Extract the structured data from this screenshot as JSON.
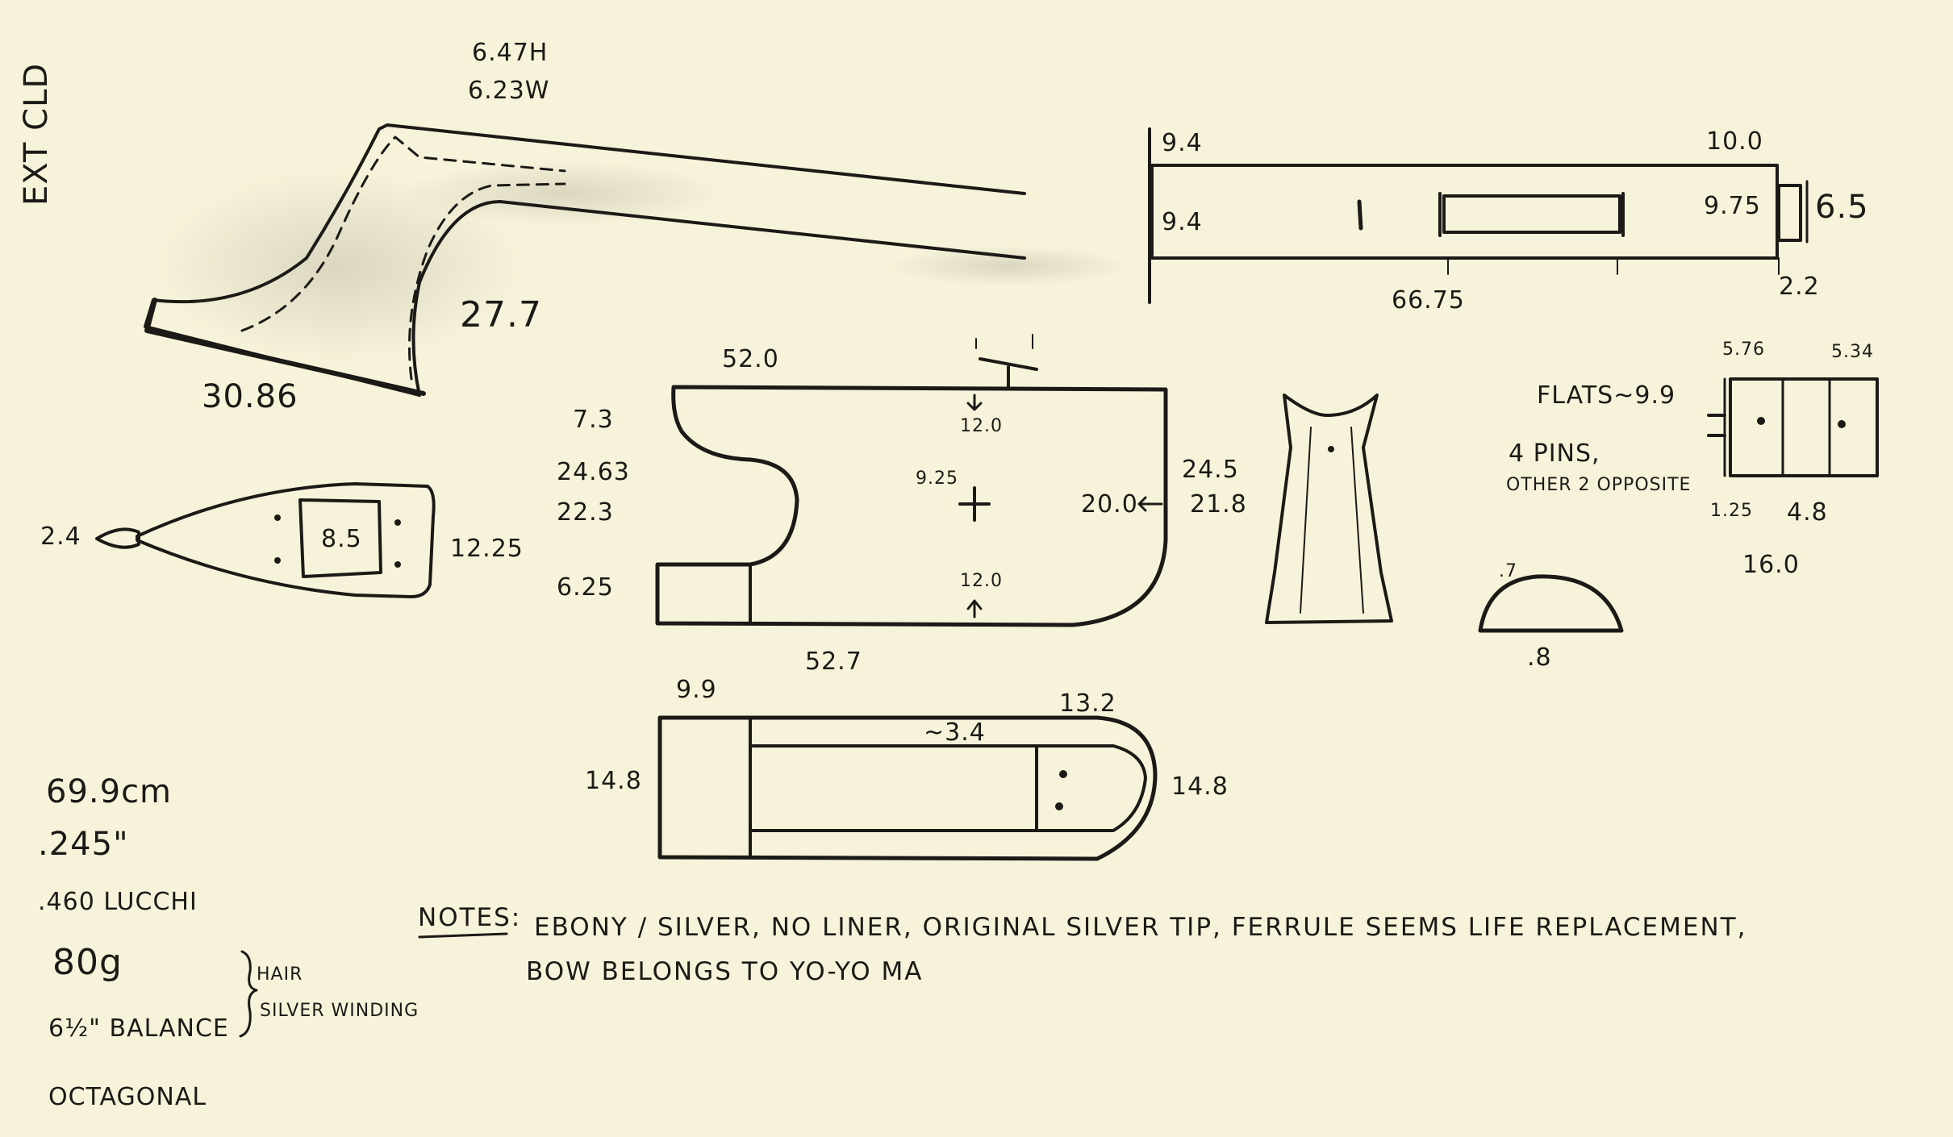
{
  "side_label": "EXT CLD",
  "frog_heights": {
    "h": "6.47H",
    "w": "6.23W"
  },
  "head": {
    "dim_a": "27.7",
    "dim_b": "30.86"
  },
  "ferrule": {
    "tl": "9.4",
    "tr": "10.0",
    "ml": "9.4",
    "mr": "9.75",
    "right": "6.5",
    "br": "2.2",
    "bottom": "66.75"
  },
  "frog": {
    "top": "52.0",
    "bottom": "52.7",
    "l1": "7.3",
    "l2": "24.63",
    "l3": "22.3",
    "l4": "6.25",
    "inner_top": "12.0",
    "inner_mid": "9.25",
    "inner_bot": "12.0",
    "r1": "24.5",
    "r2": "20.0",
    "r3": "21.8"
  },
  "tip": {
    "left": "2.4",
    "center": "8.5",
    "right": "12.25"
  },
  "underslide": {
    "tl": "9.9",
    "tr": "13.2",
    "inner": "~3.4",
    "left": "14.8",
    "right": "14.8"
  },
  "flats": {
    "label": "FLATS~9.9",
    "pins": "4 PINS,",
    "opp": "OTHER 2 OPPOSITE",
    "t1": "5.76",
    "t2": "5.34",
    "b1": "1.25",
    "b2": "4.8",
    "total": "16.0"
  },
  "arc": {
    "top": ".7",
    "bottom": ".8"
  },
  "specs": {
    "length": "69.9cm",
    "dia1": ".245\"",
    "dia2": ".460 LUCCHI",
    "weight": "80g",
    "balance": "6½\" BALANCE",
    "hair": "HAIR",
    "winding": "SILVER WINDING",
    "shape": "OCTAGONAL"
  },
  "notes": {
    "label": "NOTES:",
    "line1": "EBONY / SILVER, NO LINER, ORIGINAL SILVER TIP, FERRULE SEEMS LIFE REPLACEMENT,",
    "line2": "BOW BELONGS TO YO-YO MA"
  }
}
